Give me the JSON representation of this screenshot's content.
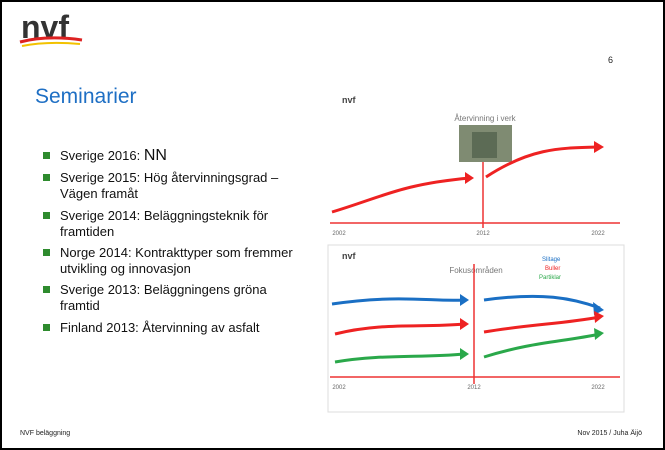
{
  "header": {
    "logo": "nvf",
    "page_number": "6",
    "title": "Seminarier"
  },
  "bullets": [
    {
      "text": "Sverige 2016:",
      "emphasis": "NN"
    },
    {
      "text": "Sverige 2015: Hög återvinningsgrad – Vägen framåt"
    },
    {
      "text": "Sverige 2014:  Beläggningsteknik för framtiden"
    },
    {
      "text": "Norge 2014:  Kontrakttyper som fremmer utvikling og innovasjon"
    },
    {
      "text": "Sverige 2013:  Beläggningens gröna framtid"
    },
    {
      "text": "Finland 2013:  Återvinning av asfalt"
    }
  ],
  "figure_top": {
    "title": "Återvinning i verk",
    "years": [
      "2002",
      "2012",
      "2022"
    ]
  },
  "figure_bottom": {
    "title": "Fokusområden",
    "legend": [
      "Slitage",
      "Buller",
      "Partiklar"
    ],
    "years": [
      "2002",
      "2012",
      "2022"
    ]
  },
  "footer": {
    "left": "NVF beläggning",
    "right": "Nov 2015 / Juha Äijö"
  }
}
